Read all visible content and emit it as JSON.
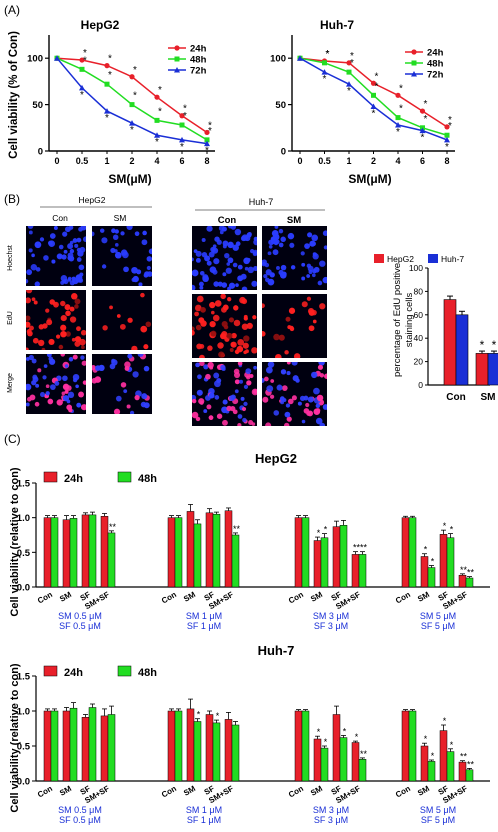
{
  "panels": {
    "A": "(A)",
    "B": "(B)",
    "C": "(C)"
  },
  "colors": {
    "h24": "#e8202a",
    "h48": "#22dd22",
    "h72": "#1a2fd6",
    "hepg2": "#e8202a",
    "huh7": "#1a2fd6",
    "blueText": "#1a2fd6"
  },
  "chart_data": [
    {
      "type": "line",
      "panel": "A",
      "title": "HepG2",
      "xlabel": "SM(μM)",
      "ylabel": "Cell viability (% of Con)",
      "categories": [
        "0",
        "0.5",
        "1",
        "2",
        "4",
        "6",
        "8"
      ],
      "ylim": [
        0,
        125
      ],
      "yticks": [
        0,
        50,
        100
      ],
      "series": [
        {
          "name": "24h",
          "values": [
            100,
            98,
            92,
            80,
            58,
            38,
            20
          ]
        },
        {
          "name": "48h",
          "values": [
            100,
            88,
            72,
            50,
            33,
            28,
            12
          ]
        },
        {
          "name": "72h",
          "values": [
            100,
            68,
            43,
            30,
            17,
            12,
            8
          ]
        }
      ],
      "stars": [
        "",
        "*",
        "*",
        "*",
        "*",
        "*",
        "*"
      ],
      "legend": "top-right"
    },
    {
      "type": "line",
      "panel": "A",
      "title": "Huh-7",
      "xlabel": "SM(μM)",
      "ylabel": "",
      "categories": [
        "0",
        "0.5",
        "1",
        "2",
        "4",
        "6",
        "8"
      ],
      "ylim": [
        0,
        125
      ],
      "yticks": [
        0,
        50,
        100
      ],
      "series": [
        {
          "name": "24h",
          "values": [
            100,
            97,
            95,
            73,
            60,
            43,
            26
          ]
        },
        {
          "name": "48h",
          "values": [
            100,
            95,
            85,
            60,
            36,
            25,
            17
          ]
        },
        {
          "name": "72h",
          "values": [
            100,
            85,
            72,
            48,
            28,
            22,
            12
          ]
        }
      ],
      "stars": [
        "",
        "*",
        "*",
        "*",
        "*",
        "*",
        "*"
      ],
      "legend": "top-right"
    },
    {
      "type": "bar",
      "panel": "B",
      "ylabel": "percentage of EdU positive staining cells",
      "categories": [
        "Con",
        "SM"
      ],
      "ylim": [
        0,
        100
      ],
      "yticks": [
        0,
        20,
        40,
        60,
        80,
        100
      ],
      "series": [
        {
          "name": "HepG2",
          "values": [
            73,
            27
          ],
          "errors": [
            3,
            2
          ]
        },
        {
          "name": "Huh-7",
          "values": [
            60,
            27
          ],
          "errors": [
            3,
            2
          ]
        }
      ],
      "stars": [
        [
          "",
          ""
        ],
        [
          "*",
          "*"
        ]
      ],
      "legend": "top"
    },
    {
      "type": "bar",
      "panel": "C",
      "title": "HepG2",
      "ylabel": "Cell viability (relative to con)",
      "ylim": [
        0,
        1.5
      ],
      "yticks": [
        0.0,
        0.5,
        1.0,
        1.5
      ],
      "groups": [
        {
          "categories": [
            "Con",
            "SM",
            "SF",
            "SM+SF"
          ],
          "labels": [
            "SM 0.5 μM",
            "SF 0.5 μM"
          ],
          "h24": [
            1.0,
            0.97,
            1.04,
            1.02
          ],
          "h48": [
            1.0,
            0.99,
            1.04,
            0.78
          ],
          "e24": [
            0.03,
            0.06,
            0.03,
            0.04
          ],
          "e48": [
            0.03,
            0.04,
            0.04,
            0.03
          ],
          "stars24": [
            "",
            "",
            "",
            ""
          ],
          "stars48": [
            "",
            "",
            "",
            "**"
          ]
        },
        {
          "categories": [
            "Con",
            "SM",
            "SF",
            "SM+SF"
          ],
          "labels": [
            "SM 1 μM",
            "SF 1 μM"
          ],
          "h24": [
            1.0,
            1.09,
            1.07,
            1.1
          ],
          "h48": [
            1.0,
            0.91,
            1.05,
            0.75
          ],
          "e24": [
            0.03,
            0.1,
            0.06,
            0.04
          ],
          "e48": [
            0.03,
            0.06,
            0.03,
            0.03
          ],
          "stars24": [
            "",
            "",
            "",
            ""
          ],
          "stars48": [
            "",
            "",
            "",
            "**"
          ]
        },
        {
          "categories": [
            "Con",
            "SM",
            "SF",
            "SM+SF"
          ],
          "labels": [
            "SM 3 μM",
            "SF 3 μM"
          ],
          "h24": [
            1.0,
            0.67,
            0.87,
            0.47
          ],
          "h48": [
            1.0,
            0.71,
            0.89,
            0.47
          ],
          "e24": [
            0.03,
            0.05,
            0.08,
            0.04
          ],
          "e48": [
            0.03,
            0.06,
            0.07,
            0.04
          ],
          "stars24": [
            "",
            "*",
            "",
            "**"
          ],
          "stars48": [
            "",
            "*",
            "",
            "**"
          ]
        },
        {
          "categories": [
            "Con",
            "SM",
            "SF",
            "SM+SF"
          ],
          "labels": [
            "SM 5 μM",
            "SF 5 μM"
          ],
          "h24": [
            1.0,
            0.44,
            0.76,
            0.17
          ],
          "h48": [
            1.0,
            0.28,
            0.71,
            0.13
          ],
          "e24": [
            0.02,
            0.04,
            0.06,
            0.02
          ],
          "e48": [
            0.02,
            0.03,
            0.06,
            0.02
          ],
          "stars24": [
            "",
            "*",
            "*",
            "**"
          ],
          "stars48": [
            "",
            "*",
            "*",
            "**"
          ]
        }
      ],
      "legend": [
        {
          "name": "24h"
        },
        {
          "name": "48h"
        }
      ]
    },
    {
      "type": "bar",
      "panel": "C",
      "title": "Huh-7",
      "ylabel": "Cell viability (relative to con)",
      "ylim": [
        0,
        1.5
      ],
      "yticks": [
        0.0,
        0.5,
        1.0,
        1.5
      ],
      "groups": [
        {
          "categories": [
            "Con",
            "SM",
            "SF",
            "SM+SF"
          ],
          "labels": [
            "SM 0.5 μM",
            "SF 0.5 μM"
          ],
          "h24": [
            1.0,
            1.0,
            0.91,
            0.93
          ],
          "h48": [
            1.0,
            1.04,
            1.05,
            0.95
          ],
          "e24": [
            0.03,
            0.05,
            0.04,
            0.1
          ],
          "e48": [
            0.03,
            0.08,
            0.05,
            0.12
          ],
          "stars24": [
            "",
            "",
            "",
            ""
          ],
          "stars48": [
            "",
            "",
            "",
            ""
          ]
        },
        {
          "categories": [
            "Con",
            "SM",
            "SF",
            "SM+SF"
          ],
          "labels": [
            "SM 1 μM",
            "SF 1 μM"
          ],
          "h24": [
            1.0,
            1.03,
            0.95,
            0.88
          ],
          "h48": [
            1.0,
            0.85,
            0.83,
            0.8
          ],
          "e24": [
            0.03,
            0.14,
            0.05,
            0.1
          ],
          "e48": [
            0.03,
            0.04,
            0.04,
            0.05
          ],
          "stars24": [
            "",
            "",
            "",
            ""
          ],
          "stars48": [
            "",
            "*",
            "*",
            ""
          ]
        },
        {
          "categories": [
            "Con",
            "SM",
            "SF",
            "SM+SF"
          ],
          "labels": [
            "SM 3 μM",
            "SF 3 μM"
          ],
          "h24": [
            1.0,
            0.6,
            0.95,
            0.55
          ],
          "h48": [
            1.0,
            0.47,
            0.62,
            0.31
          ],
          "e24": [
            0.02,
            0.04,
            0.12,
            0.02
          ],
          "e48": [
            0.02,
            0.03,
            0.03,
            0.02
          ],
          "stars24": [
            "",
            "*",
            "",
            "*"
          ],
          "stars48": [
            "",
            "*",
            "*",
            "**"
          ]
        },
        {
          "categories": [
            "Con",
            "SM",
            "SF",
            "SM+SF"
          ],
          "labels": [
            "SM 5 μM",
            "SF 5 μM"
          ],
          "h24": [
            1.0,
            0.5,
            0.72,
            0.27
          ],
          "h48": [
            1.0,
            0.28,
            0.42,
            0.16
          ],
          "e24": [
            0.02,
            0.04,
            0.08,
            0.02
          ],
          "e48": [
            0.02,
            0.02,
            0.04,
            0.02
          ],
          "stars24": [
            "",
            "*",
            "*",
            "**"
          ],
          "stars48": [
            "",
            "*",
            "*",
            "**"
          ]
        }
      ],
      "legend": [
        {
          "name": "24h"
        },
        {
          "name": "48h"
        }
      ]
    }
  ],
  "microscopy": {
    "left": {
      "title": "HepG2",
      "cols": [
        "Con",
        "SM"
      ]
    },
    "right": {
      "title": "Huh-7",
      "cols": [
        "Con",
        "SM"
      ]
    },
    "rows": [
      "Hoechst",
      "EdU",
      "Merge"
    ]
  }
}
